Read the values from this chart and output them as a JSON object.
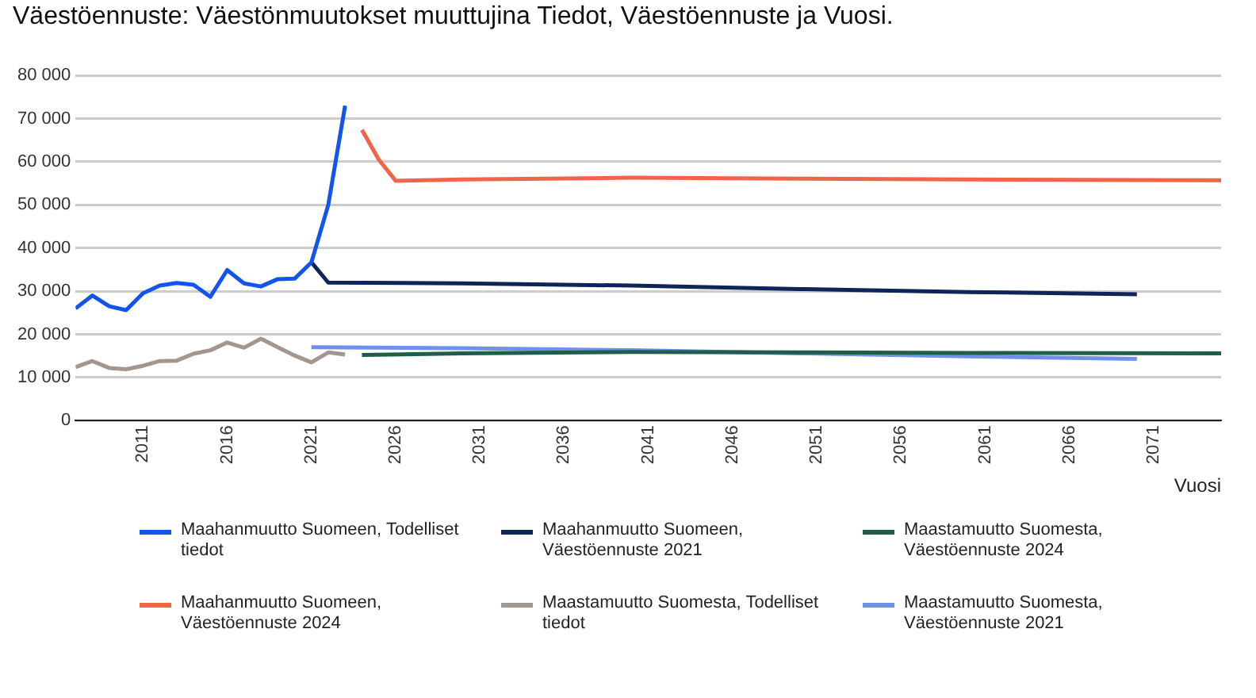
{
  "chart_data": {
    "type": "line",
    "title": "Väestöennuste: Väestönmuutokset muuttujina Tiedot, Väestöennuste ja Vuosi.",
    "xlabel": "Vuosi",
    "xlim": [
      2007,
      2075
    ],
    "xticks": [
      2011,
      2016,
      2021,
      2026,
      2031,
      2036,
      2041,
      2046,
      2051,
      2056,
      2061,
      2066,
      2071
    ],
    "ylim": [
      0,
      80000
    ],
    "yticks": [
      {
        "value": 0,
        "label": "0"
      },
      {
        "value": 10000,
        "label": "10 000"
      },
      {
        "value": 20000,
        "label": "20 000"
      },
      {
        "value": 30000,
        "label": "30 000"
      },
      {
        "value": 40000,
        "label": "40 000"
      },
      {
        "value": 50000,
        "label": "50 000"
      },
      {
        "value": 60000,
        "label": "60 000"
      },
      {
        "value": 70000,
        "label": "70 000"
      },
      {
        "value": 80000,
        "label": "80 000"
      }
    ],
    "grid": "y",
    "legend": "bottom",
    "marker": "none",
    "line_style": "solid",
    "series": [
      {
        "name": "Maahanmuutto Suomeen, Todelliset tiedot",
        "color": "#1155ee",
        "x": [
          2007,
          2008,
          2009,
          2010,
          2011,
          2012,
          2013,
          2014,
          2015,
          2016,
          2017,
          2018,
          2019,
          2020,
          2021,
          2022,
          2023
        ],
        "values": [
          26000,
          29000,
          26500,
          25600,
          29500,
          31300,
          31900,
          31500,
          28700,
          34900,
          31800,
          31100,
          32800,
          32900,
          36700,
          50000,
          73000
        ]
      },
      {
        "name": "Maahanmuutto Suomeen, Väestöennuste 2021",
        "color": "#0f2557",
        "x": [
          2021,
          2022,
          2030,
          2040,
          2050,
          2060,
          2070
        ],
        "values": [
          36700,
          32000,
          31800,
          31300,
          30500,
          29800,
          29300
        ]
      },
      {
        "name": "Maastamuutto Suomesta, Väestöennuste 2024",
        "color": "#1e5e4a",
        "x": [
          2024,
          2030,
          2040,
          2050,
          2060,
          2075
        ],
        "values": [
          15200,
          15600,
          15900,
          15800,
          15700,
          15600
        ]
      },
      {
        "name": "Maahanmuutto Suomeen, Väestöennuste 2024",
        "color": "#f2644a",
        "x": [
          2024,
          2025,
          2026,
          2030,
          2040,
          2050,
          2060,
          2075
        ],
        "values": [
          67400,
          60500,
          55600,
          55900,
          56300,
          56100,
          55900,
          55700
        ]
      },
      {
        "name": "Maastamuutto Suomesta, Todelliset tiedot",
        "color": "#a39590",
        "x": [
          2007,
          2008,
          2009,
          2010,
          2011,
          2012,
          2013,
          2014,
          2015,
          2016,
          2017,
          2018,
          2019,
          2020,
          2021,
          2022,
          2023
        ],
        "values": [
          12400,
          13800,
          12200,
          11900,
          12700,
          13800,
          13900,
          15500,
          16300,
          18100,
          16900,
          19000,
          17000,
          15100,
          13500,
          15800,
          15300
        ]
      },
      {
        "name": "Maastamuutto Suomesta, Väestöennuste 2021",
        "color": "#7090ea",
        "x": [
          2021,
          2030,
          2040,
          2050,
          2060,
          2070
        ],
        "values": [
          17000,
          16800,
          16300,
          15600,
          14900,
          14300
        ]
      }
    ]
  }
}
